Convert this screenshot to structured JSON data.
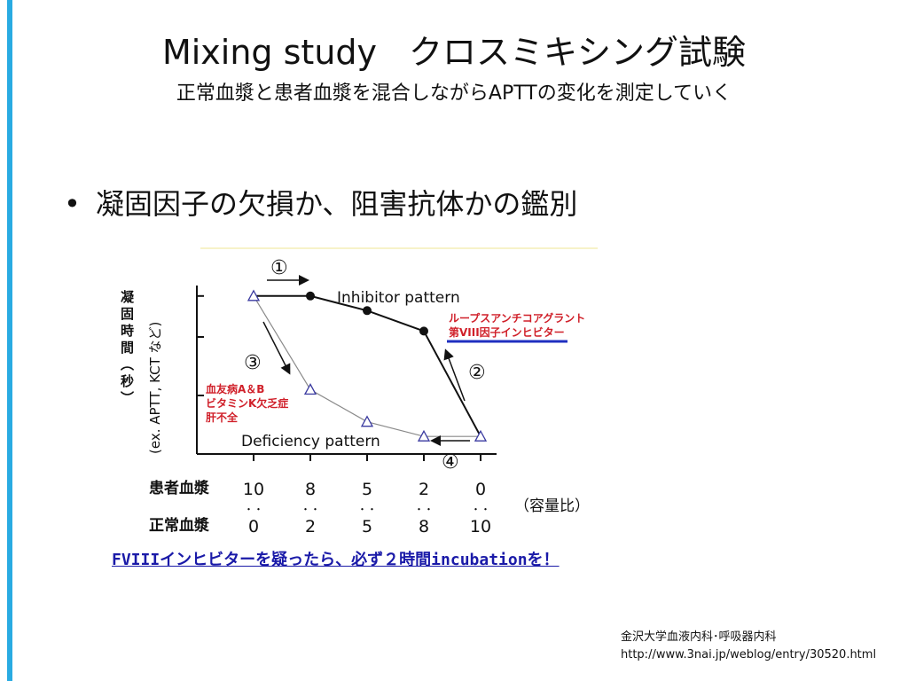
{
  "slide": {
    "title_en": "Mixing study",
    "title_jp": "クロスミキシング試験",
    "subtitle": "正常血漿と患者血漿を混合しながらAPTTの変化を測定していく",
    "bullet": "凝固因子の欠損か、阻害抗体かの鑑別",
    "footnote": "FVIIIインヒビターを疑ったら、必ず２時間incubationを！",
    "credit_line1": "金沢大学血液内科･呼吸器内科",
    "credit_line2": "http://www.3nai.jp/weblog/entry/30520.html"
  },
  "chart_data": {
    "type": "line",
    "ylabel_main": "凝固時間（秒）",
    "ylabel_sub": "(ex. APTT, KCT など)",
    "x": [
      0,
      1,
      2,
      3,
      4
    ],
    "patient_ratio": [
      "10",
      "8",
      "5",
      "2",
      "0"
    ],
    "normal_ratio": [
      "0",
      "2",
      "5",
      "8",
      "10"
    ],
    "row_label_patient": "患者血漿",
    "row_label_normal": "正常血漿",
    "ratio_note": "（容量比）",
    "ratio_sep": "・・",
    "ylim": [
      0,
      3
    ],
    "grid": false,
    "series": [
      {
        "name": "Inhibitor pattern",
        "marker": "filled-circle",
        "values": [
          2.7,
          2.7,
          2.45,
          2.1,
          0.3
        ]
      },
      {
        "name": "Deficiency pattern",
        "marker": "open-triangle",
        "values": [
          2.7,
          1.1,
          0.55,
          0.3,
          0.3
        ]
      }
    ],
    "annotations": {
      "step1": "①",
      "step2": "②",
      "step3": "③",
      "step4": "④",
      "inhibitor_note1": "ループスアンチコアグラント",
      "inhibitor_note2": "第VIII因子インヒビター",
      "deficiency_note1": "血友病A＆B",
      "deficiency_note2": "ビタミンK欠乏症",
      "deficiency_note3": "肝不全"
    },
    "colors": {
      "line_inhibitor": "#111111",
      "line_deficiency": "#8a8a8a",
      "marker_triangle": "#3a3aa0",
      "note_red": "#d0202a",
      "note_underline": "#1f2fc0"
    }
  }
}
